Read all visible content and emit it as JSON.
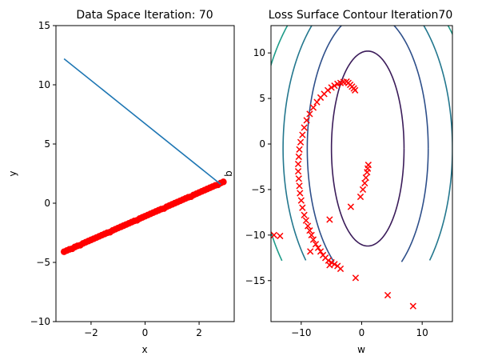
{
  "chart_data": [
    {
      "type": "scatter",
      "title": "Data Space Iteration: 70",
      "xlabel": "x",
      "ylabel": "y",
      "xlim": [
        -3.3,
        3.3
      ],
      "ylim": [
        -10,
        15
      ],
      "xticks": [
        -2,
        0,
        2
      ],
      "yticks": [
        -10,
        -5,
        0,
        5,
        10,
        15
      ],
      "series": [
        {
          "kind": "line",
          "color": "#1f77b4",
          "x": [
            -3.0,
            2.8
          ],
          "y": [
            12.2,
            1.6
          ]
        },
        {
          "kind": "points",
          "color": "#ff0000",
          "x": [
            -3.0,
            -2.9,
            -2.8,
            -2.7,
            -2.6,
            -2.5,
            -2.4,
            -2.3,
            -2.2,
            -2.1,
            -2.0,
            -1.9,
            -1.8,
            -1.7,
            -1.6,
            -1.5,
            -1.4,
            -1.3,
            -1.2,
            -1.1,
            -1.0,
            -0.9,
            -0.8,
            -0.7,
            -0.6,
            -0.5,
            -0.4,
            -0.3,
            -0.2,
            -0.1,
            0.0,
            0.1,
            0.2,
            0.3,
            0.4,
            0.5,
            0.6,
            0.7,
            0.8,
            0.9,
            1.0,
            1.1,
            1.2,
            1.3,
            1.4,
            1.5,
            1.6,
            1.7,
            1.8,
            1.9,
            2.0,
            2.1,
            2.2,
            2.3,
            2.4,
            2.5,
            2.6,
            2.7,
            2.8,
            2.9
          ],
          "y": [
            -4.1,
            -4.0,
            -3.9,
            -3.85,
            -3.7,
            -3.6,
            -3.55,
            -3.4,
            -3.3,
            -3.2,
            -3.1,
            -3.0,
            -2.9,
            -2.8,
            -2.7,
            -2.6,
            -2.5,
            -2.45,
            -2.3,
            -2.2,
            -2.1,
            -2.0,
            -1.9,
            -1.8,
            -1.7,
            -1.6,
            -1.5,
            -1.45,
            -1.3,
            -1.2,
            -1.1,
            -1.0,
            -0.9,
            -0.8,
            -0.7,
            -0.6,
            -0.5,
            -0.45,
            -0.3,
            -0.2,
            -0.1,
            0.0,
            0.1,
            0.2,
            0.3,
            0.4,
            0.5,
            0.55,
            0.7,
            0.8,
            0.9,
            1.0,
            1.1,
            1.2,
            1.3,
            1.4,
            1.5,
            1.55,
            1.7,
            1.8
          ]
        }
      ]
    },
    {
      "type": "scatter",
      "title": "Loss Surface Contour Iteration70",
      "xlabel": "w",
      "ylabel": "b",
      "xlim": [
        -15,
        15
      ],
      "ylim": [
        -19.5,
        13
      ],
      "xticks": [
        -10,
        0,
        10
      ],
      "yticks": [
        -15,
        -10,
        -5,
        0,
        5,
        10
      ],
      "contours": {
        "center": [
          1,
          -0.5
        ],
        "half_widths": [
          6,
          10,
          14,
          18,
          22,
          26
        ],
        "half_heights": [
          10.7,
          15.0,
          18.0,
          20.0,
          21.0,
          21.5
        ],
        "colors": [
          "#3b1c5a",
          "#2e4f8a",
          "#23778e",
          "#1f9c89",
          "#43b873",
          "#a8d83a"
        ],
        "clip_bottom": -13
      },
      "markers": {
        "color": "#ff0000",
        "symbol": "x",
        "w": [
          8.5,
          4.3,
          -1.0,
          -5.3,
          -14.5,
          -13.5,
          -8.5,
          -3.5,
          -4.0,
          -4.5,
          -5.0,
          -5.5,
          -6.0,
          -6.4,
          -6.8,
          -7.2,
          -7.6,
          -8.0,
          -8.3,
          -8.6,
          -8.9,
          -9.2,
          -9.5,
          -9.8,
          -10.0,
          -10.2,
          -10.3,
          -10.4,
          -10.5,
          -10.5,
          -10.4,
          -10.3,
          -10.1,
          -9.8,
          -9.5,
          -9.1,
          -8.6,
          -8.0,
          -7.4,
          -6.8,
          -6.2,
          -5.6,
          -5.0,
          -4.5,
          -4.0,
          -3.5,
          -3.0,
          -2.5,
          -2.2,
          -1.9,
          -1.6,
          -1.3,
          -1.1,
          -5.3,
          -1.8,
          -0.2,
          0.2,
          0.5,
          0.7,
          0.9,
          1.0,
          1.1
        ],
        "b": [
          -17.8,
          -16.6,
          -14.7,
          -13.3,
          -10.0,
          -10.1,
          -11.8,
          -13.7,
          -13.4,
          -13.2,
          -13.0,
          -12.8,
          -12.5,
          -12.2,
          -11.8,
          -11.4,
          -11.0,
          -10.5,
          -10.0,
          -9.5,
          -9.0,
          -8.4,
          -7.8,
          -7.0,
          -6.2,
          -5.4,
          -4.6,
          -3.8,
          -3.0,
          -2.2,
          -1.4,
          -0.6,
          0.2,
          1.0,
          1.8,
          2.6,
          3.3,
          4.0,
          4.6,
          5.1,
          5.5,
          5.9,
          6.2,
          6.4,
          6.6,
          6.7,
          6.8,
          6.85,
          6.7,
          6.5,
          6.3,
          6.1,
          5.9,
          -8.3,
          -6.9,
          -5.8,
          -5.0,
          -4.3,
          -3.7,
          -3.1,
          -2.7,
          -2.3
        ]
      }
    }
  ]
}
